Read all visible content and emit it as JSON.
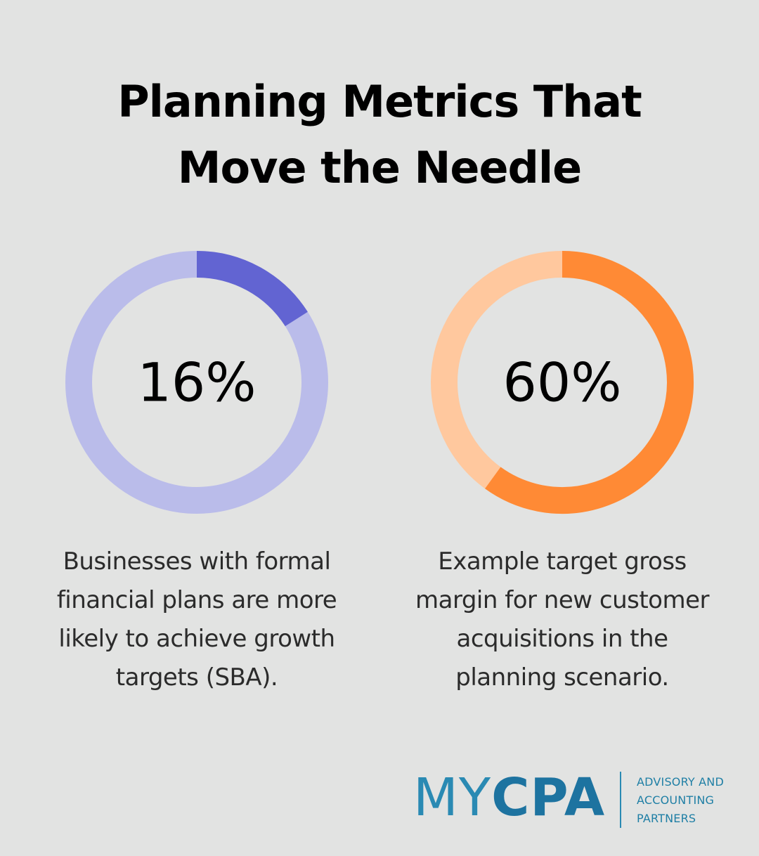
{
  "title": {
    "line1": "Planning Metrics That",
    "line2": "Move the Needle"
  },
  "chart_data": [
    {
      "type": "pie",
      "variant": "donut",
      "value": 16,
      "label": "16%",
      "description": "Businesses with formal financial plans are more likely to achieve growth targets (SBA).",
      "colors": {
        "filled": "#6264d2",
        "track": "#babcea"
      }
    },
    {
      "type": "pie",
      "variant": "donut",
      "value": 60,
      "label": "60%",
      "description": "Example target gross margin for new customer acquisitions in the planning scenario.",
      "colors": {
        "filled": "#ff8a35",
        "track": "#ffc89e"
      }
    }
  ],
  "descriptions": {
    "left_lines": [
      "Businesses with formal",
      "financial plans are more",
      "likely to achieve growth",
      "targets (SBA)."
    ],
    "right_lines": [
      "Example target gross",
      "margin for new customer",
      "acquisitions in the",
      "planning scenario."
    ]
  },
  "logo": {
    "word_thin": "MY",
    "word_bold": "CPA",
    "tagline": [
      "ADVISORY AND",
      "ACCOUNTING",
      "PARTNERS"
    ],
    "color": "#1f7fa5"
  }
}
